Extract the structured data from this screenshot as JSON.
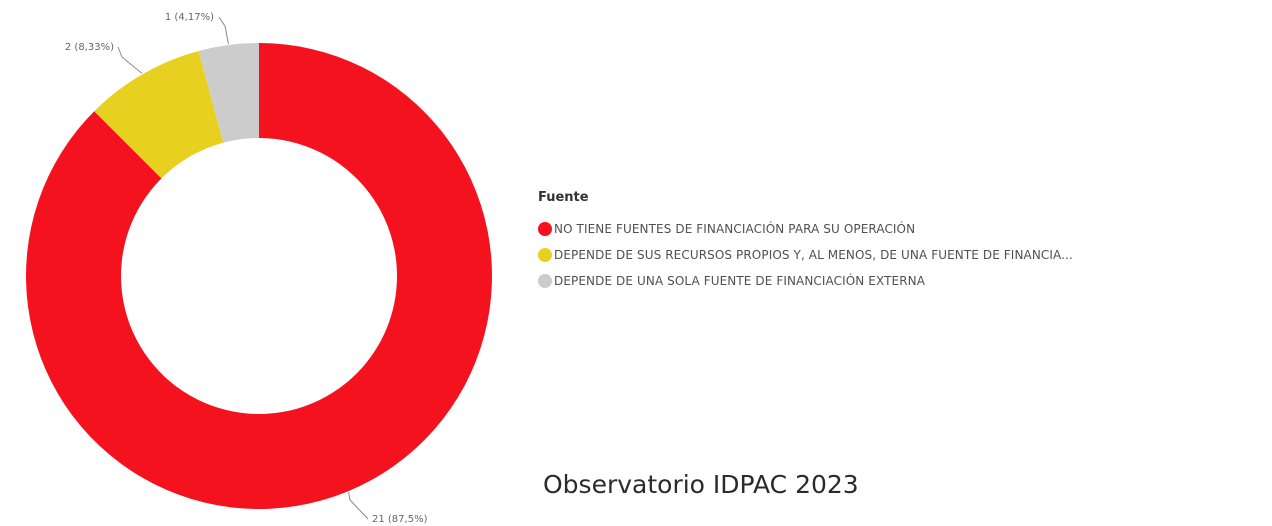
{
  "chart_data": {
    "type": "pie",
    "donut": true,
    "categories": [
      "NO TIENE FUENTES DE FINANCIACIÓN PARA SU OPERACIÓN",
      "DEPENDE DE SUS RECURSOS PROPIOS Y, AL MENOS, DE UNA FUENTE DE FINANCIA...",
      "DEPENDE DE UNA SOLA FUENTE DE FINANCIACIÓN EXTERNA"
    ],
    "values": [
      21,
      2,
      1
    ],
    "data_labels": [
      "21 (87,5%)",
      "2 (8,33%)",
      "1 (4,17%)"
    ],
    "colors": [
      "#f5121f",
      "#e8d021",
      "#cccccc"
    ],
    "legend_title": "Fuente",
    "legend_position": "right"
  },
  "footer": {
    "text": "Observatorio IDPAC 2023"
  }
}
